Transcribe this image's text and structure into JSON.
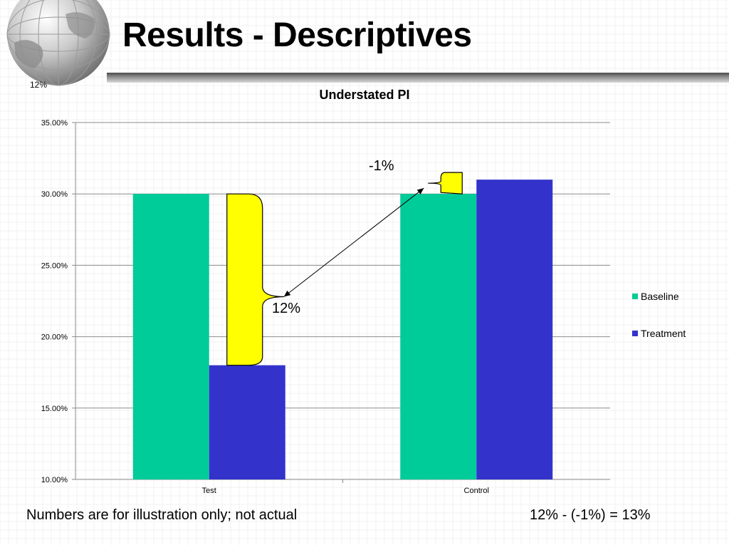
{
  "slide": {
    "title": "Results - Descriptives",
    "corner_label": "12%",
    "footer_left": "Numbers are for illustration only; not actual",
    "footer_right": "12% - (-1%) = 13%"
  },
  "colors": {
    "baseline": "#00CC99",
    "treatment": "#3333CC",
    "brace": "#FFFF00"
  },
  "annotations": {
    "test_diff": "12%",
    "control_diff": "-1%"
  },
  "chart_data": {
    "type": "bar",
    "title": "Understated PI",
    "categories": [
      "Test",
      "Control"
    ],
    "series": [
      {
        "name": "Baseline",
        "values": [
          0.3,
          0.3
        ]
      },
      {
        "name": "Treatment",
        "values": [
          0.18,
          0.31
        ]
      }
    ],
    "ylim": [
      0.1,
      0.35
    ],
    "yticks": [
      0.1,
      0.15,
      0.2,
      0.25,
      0.3,
      0.35
    ],
    "ytick_labels": [
      "10.00%",
      "15.00%",
      "20.00%",
      "25.00%",
      "30.00%",
      "35.00%"
    ],
    "grid": true,
    "legend_position": "right"
  }
}
